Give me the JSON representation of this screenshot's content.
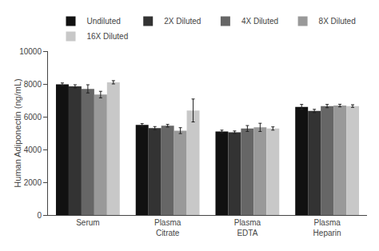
{
  "chart_data": {
    "type": "bar",
    "categories": [
      "Serum",
      "Plasma\nCitrate",
      "Plasma\nEDTA",
      "Plasma\nHeparin"
    ],
    "series": [
      {
        "name": "Undiluted",
        "color": "#111111",
        "values": [
          7980,
          5500,
          5100,
          6600
        ],
        "errors": [
          80,
          80,
          80,
          150
        ]
      },
      {
        "name": "2X Diluted",
        "color": "#333333",
        "values": [
          7850,
          5300,
          5050,
          6350
        ],
        "errors": [
          100,
          100,
          80,
          100
        ]
      },
      {
        "name": "4X Diluted",
        "color": "#666666",
        "values": [
          7700,
          5450,
          5280,
          6650
        ],
        "errors": [
          250,
          80,
          180,
          100
        ]
      },
      {
        "name": "8X Diluted",
        "color": "#999999",
        "values": [
          7350,
          5150,
          5350,
          6680
        ],
        "errors": [
          200,
          180,
          250,
          80
        ]
      },
      {
        "name": "16X Diluted",
        "color": "#c8c8c8",
        "values": [
          8100,
          6380,
          5280,
          6650
        ],
        "errors": [
          100,
          700,
          100,
          80
        ]
      }
    ],
    "ylabel": "Human Adiponectin (ng/mL)",
    "ylim": [
      0,
      10000
    ],
    "yticks": [
      0,
      2000,
      4000,
      6000,
      8000,
      10000
    ],
    "grid": false,
    "legend": "top"
  }
}
